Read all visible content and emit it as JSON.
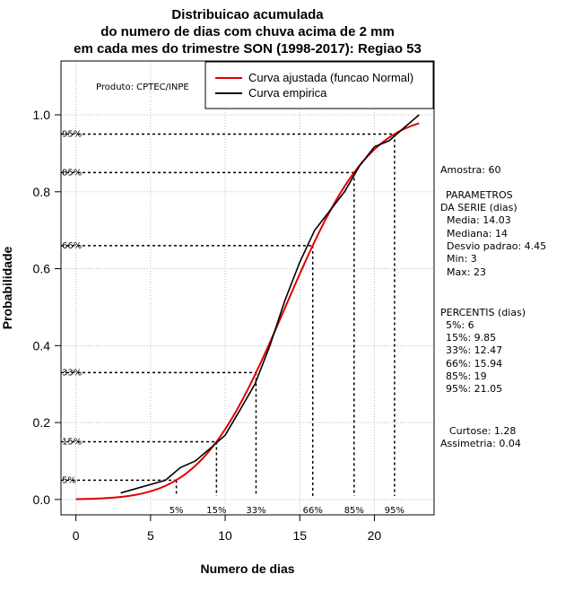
{
  "titles": {
    "line1": "Distribuicao acumulada",
    "line2": "do numero de dias com chuva acima de 2 mm",
    "line3": "em cada mes do trimestre SON (1998-2017): Regiao 53"
  },
  "producer": "Produto: CPTEC/INPE",
  "legend": {
    "fitted": "Curva ajustada (funcao Normal)",
    "empirical": "Curva empirica"
  },
  "colors": {
    "fitted": "#e00000",
    "empirical": "#000000",
    "grid": "#bdbdbd"
  },
  "side_panel": {
    "sample": "Amostra: 60",
    "params_title_1": "PARAMETROS",
    "params_title_2": "DA SERIE (dias)",
    "params": [
      "Media: 14.03",
      "Mediana: 14",
      "Desvio padrao: 4.45",
      "Min: 3",
      "Max: 23"
    ],
    "percentis_title": "PERCENTIS (dias)",
    "percentis": [
      "5%: 6",
      "15%: 9.85",
      "33%: 12.47",
      "66%: 15.94",
      "85%: 19",
      "95%: 21.05"
    ],
    "curtose": "Curtose: 1.28",
    "assimetria": "Assimetria: 0.04"
  },
  "chart_data": {
    "type": "line",
    "title": "Distribuicao acumulada do numero de dias com chuva acima de 2 mm em cada mes do trimestre SON (1998-2017): Regiao 53",
    "xlabel": "Numero de dias",
    "ylabel": "Probabilidade",
    "xlim": [
      -1,
      24
    ],
    "ylim": [
      -0.04,
      1.14
    ],
    "x_ticks": [
      0,
      5,
      10,
      15,
      20
    ],
    "x_tick_labels": [
      "0",
      "5",
      "10",
      "15",
      "20"
    ],
    "y_ticks": [
      0.0,
      0.2,
      0.4,
      0.6,
      0.8,
      1.0
    ],
    "y_tick_labels": [
      "0.0",
      "0.2",
      "0.4",
      "0.6",
      "0.8",
      "1.0"
    ],
    "grid": true,
    "legend_position": "top-right",
    "fitted_normal": {
      "name": "Curva ajustada (funcao Normal)",
      "mean": 14.03,
      "sd": 4.45,
      "x_from": 0,
      "x_to": 23
    },
    "empirical": {
      "name": "Curva empirica",
      "x": [
        3,
        6,
        7,
        8,
        9,
        10,
        11,
        12,
        13,
        14,
        15,
        16,
        17,
        18,
        19,
        20,
        21,
        22,
        23
      ],
      "y": [
        0.017,
        0.05,
        0.083,
        0.1,
        0.133,
        0.167,
        0.233,
        0.3,
        0.4,
        0.517,
        0.617,
        0.7,
        0.75,
        0.8,
        0.867,
        0.917,
        0.933,
        0.967,
        1.0
      ]
    },
    "percentile_markers": [
      {
        "label": "5%",
        "p": 0.05,
        "x": 6.73
      },
      {
        "label": "15%",
        "p": 0.15,
        "x": 9.42
      },
      {
        "label": "33%",
        "p": 0.33,
        "x": 12.07
      },
      {
        "label": "66%",
        "p": 0.66,
        "x": 15.87
      },
      {
        "label": "85%",
        "p": 0.85,
        "x": 18.64
      },
      {
        "label": "95%",
        "p": 0.95,
        "x": 21.35
      }
    ]
  }
}
